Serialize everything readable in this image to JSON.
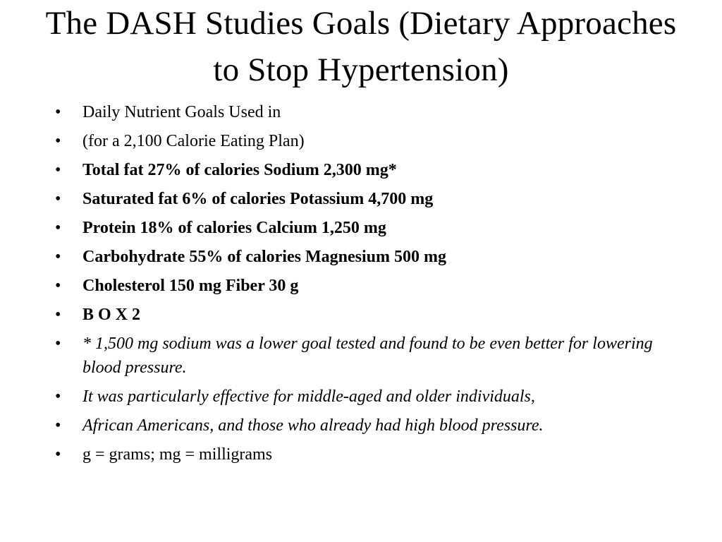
{
  "slide": {
    "title": "The DASH Studies Goals (Dietary Approaches to Stop Hypertension)",
    "bullet_symbol": "•",
    "bullets": [
      {
        "text": "Daily Nutrient Goals Used in",
        "style": "normal"
      },
      {
        "text": "(for a 2,100 Calorie Eating Plan)",
        "style": "normal"
      },
      {
        "text": "Total fat 27% of calories Sodium 2,300 mg*",
        "style": "bold"
      },
      {
        "text": "Saturated fat 6% of calories Potassium 4,700 mg",
        "style": "bold"
      },
      {
        "text": "Protein 18% of calories Calcium 1,250 mg",
        "style": "bold"
      },
      {
        "text": "Carbohydrate 55% of calories Magnesium 500 mg",
        "style": "bold"
      },
      {
        "text": "Cholesterol 150 mg Fiber 30 g",
        "style": "bold"
      },
      {
        "text": "B O X 2",
        "style": "bold"
      },
      {
        "text": "* 1,500 mg sodium was a lower goal tested and found to be even better for lowering blood pressure.",
        "style": "italic"
      },
      {
        "text": "It was particularly effective for middle-aged and older individuals,",
        "style": "italic"
      },
      {
        "text": "African Americans, and those who already had high blood pressure.",
        "style": "italic"
      },
      {
        "text": "g = grams; mg = milligrams",
        "style": "normal"
      }
    ]
  }
}
